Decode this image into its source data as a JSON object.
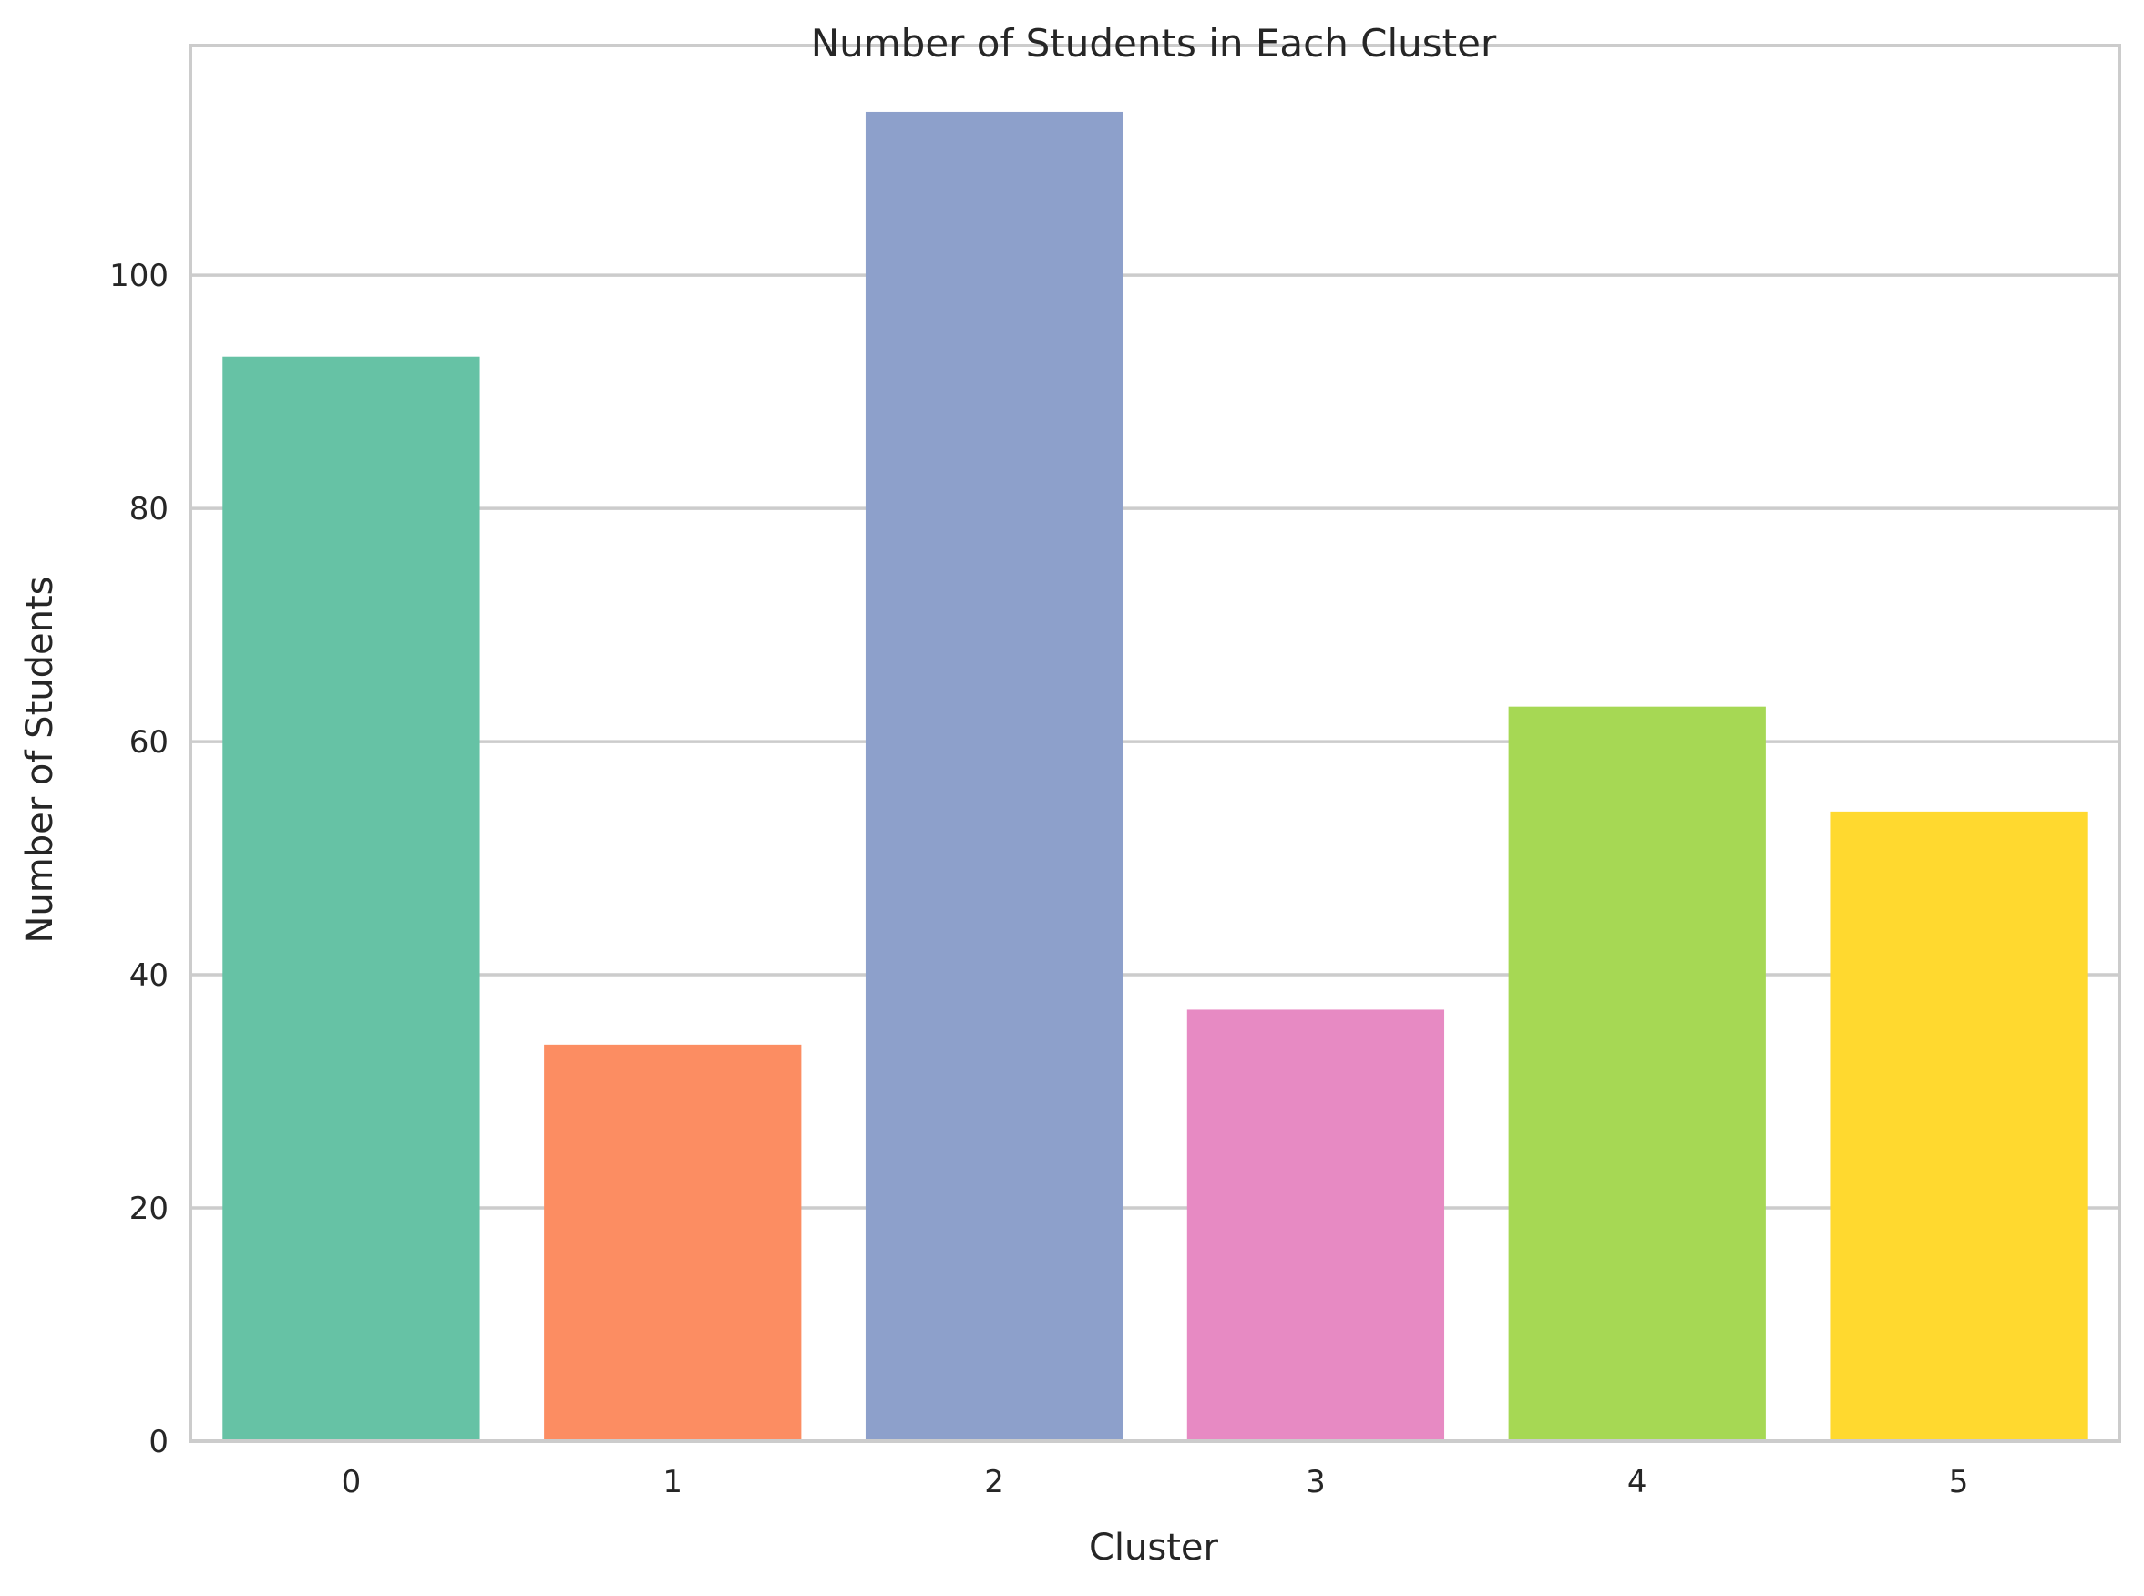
{
  "chart_data": {
    "type": "bar",
    "title": "Number of Students in Each Cluster",
    "xlabel": "Cluster",
    "ylabel": "Number of Students",
    "categories": [
      "0",
      "1",
      "2",
      "3",
      "4",
      "5"
    ],
    "values": [
      93,
      34,
      114,
      37,
      63,
      54
    ],
    "colors": [
      "#66c2a5",
      "#fc8d62",
      "#8da0cb",
      "#e78ac3",
      "#a6d854",
      "#ffd92f"
    ],
    "ylim": [
      0,
      119.7
    ],
    "yticks": [
      0,
      20,
      40,
      60,
      80,
      100
    ],
    "grid": "horizontal",
    "legend": "none"
  }
}
